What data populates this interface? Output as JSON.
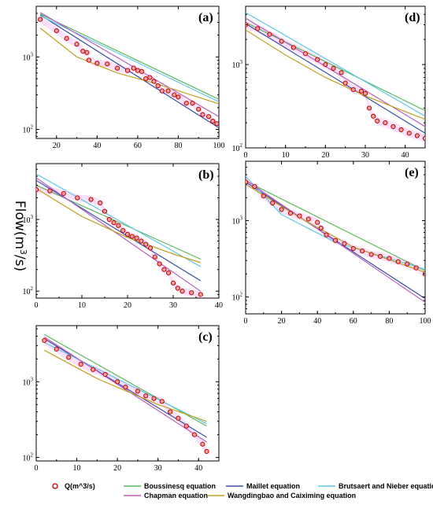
{
  "figure": {
    "ylabel_main": "Flow(m",
    "ylabel_sup": "3",
    "ylabel_tail": "/s)"
  },
  "legend": {
    "items": [
      {
        "label": "Q(m^3/s)",
        "kind": "marker",
        "color": "#c00000"
      },
      {
        "label": "Boussinesq equation",
        "kind": "line",
        "color": "#5cb85c"
      },
      {
        "label": "Maillet equation",
        "kind": "line",
        "color": "#3b4fa8"
      },
      {
        "label": "Brutsaert and Nieber equation",
        "kind": "line",
        "color": "#5fc8e8"
      },
      {
        "label": "Chapman equation",
        "kind": "line",
        "color": "#b85fc0"
      },
      {
        "label": "Wangdingbao and Caiximing equation",
        "kind": "line",
        "color": "#c0a020"
      }
    ]
  },
  "colors": {
    "observed": "#c00000",
    "observed_fill": "#f4a0a0",
    "band": "#ee82ee"
  },
  "chart_data": [
    {
      "panel": "(a)",
      "type": "line",
      "y_scale": "log",
      "xlim": [
        10,
        100
      ],
      "ylim": [
        75,
        5000
      ],
      "xticks": [
        20,
        40,
        60,
        80,
        100
      ],
      "yticks": [
        {
          "v": 100,
          "b": "10",
          "e": "2"
        },
        {
          "v": 1000,
          "b": "10",
          "e": "3"
        }
      ],
      "observed": {
        "x": [
          12,
          20,
          25,
          30,
          33,
          35,
          36,
          40,
          45,
          50,
          55,
          58,
          60,
          62,
          64,
          66,
          68,
          70,
          72,
          75,
          78,
          80,
          84,
          87,
          90,
          92,
          95,
          97,
          99
        ],
        "y": [
          3300,
          2300,
          1800,
          1500,
          1200,
          1150,
          900,
          820,
          800,
          700,
          650,
          700,
          650,
          630,
          500,
          520,
          460,
          400,
          340,
          340,
          300,
          280,
          230,
          230,
          190,
          160,
          150,
          130,
          120
        ]
      },
      "series": [
        {
          "name": "Boussinesq equation",
          "x": [
            12,
            100
          ],
          "y": [
            3900,
            260
          ]
        },
        {
          "name": "Maillet equation",
          "x": [
            12,
            100
          ],
          "y": [
            3800,
            105
          ]
        },
        {
          "name": "Brutsaert and Nieber equation",
          "x": [
            12,
            100
          ],
          "y": [
            3700,
            240
          ]
        },
        {
          "name": "Chapman equation",
          "x": [
            12,
            100
          ],
          "y": [
            4100,
            150
          ]
        },
        {
          "name": "Wangdingbao and Caiximing equation",
          "x": [
            12,
            30,
            50,
            70,
            100
          ],
          "y": [
            2500,
            1000,
            600,
            420,
            225
          ]
        }
      ]
    },
    {
      "panel": "(d)",
      "type": "line",
      "y_scale": "log",
      "xlim": [
        0,
        45
      ],
      "ylim": [
        100,
        5000
      ],
      "xticks": [
        0,
        10,
        20,
        30,
        40
      ],
      "yticks": [
        {
          "v": 100,
          "b": "10",
          "e": "2"
        },
        {
          "v": 1000,
          "b": "10",
          "e": "3"
        }
      ],
      "observed": {
        "x": [
          0,
          3,
          6,
          9,
          12,
          15,
          18,
          20,
          22,
          24,
          25,
          27,
          29,
          30,
          31,
          32,
          33,
          35,
          37,
          39,
          41,
          43,
          45
        ],
        "y": [
          3000,
          2700,
          2300,
          1900,
          1600,
          1350,
          1150,
          1000,
          900,
          800,
          600,
          500,
          480,
          450,
          300,
          240,
          210,
          200,
          180,
          165,
          150,
          140,
          130
        ]
      },
      "series": [
        {
          "name": "Boussinesq equation",
          "x": [
            0,
            45
          ],
          "y": [
            3200,
            280
          ]
        },
        {
          "name": "Maillet equation",
          "x": [
            0,
            45
          ],
          "y": [
            3100,
            150
          ]
        },
        {
          "name": "Brutsaert and Nieber equation",
          "x": [
            0,
            45
          ],
          "y": [
            4200,
            240
          ]
        },
        {
          "name": "Chapman equation",
          "x": [
            0,
            45
          ],
          "y": [
            3600,
            180
          ]
        },
        {
          "name": "Wangdingbao and Caiximing equation",
          "x": [
            0,
            10,
            20,
            30,
            45
          ],
          "y": [
            2600,
            1300,
            700,
            420,
            220
          ]
        }
      ]
    },
    {
      "panel": "(b)",
      "type": "line",
      "y_scale": "log",
      "xlim": [
        0,
        40
      ],
      "ylim": [
        80,
        6000
      ],
      "xticks": [
        0,
        10,
        20,
        30,
        40
      ],
      "yticks": [
        {
          "v": 100,
          "b": "10",
          "e": "2"
        },
        {
          "v": 1000,
          "b": "10",
          "e": "3"
        }
      ],
      "observed": {
        "x": [
          0,
          3,
          6,
          9,
          12,
          14,
          15,
          16,
          17,
          18,
          19,
          20,
          21,
          22,
          23,
          24,
          25,
          26,
          27,
          28,
          29,
          30,
          31,
          32,
          34,
          36
        ],
        "y": [
          2600,
          2500,
          2300,
          2000,
          1900,
          1700,
          1300,
          1000,
          900,
          820,
          700,
          620,
          580,
          550,
          500,
          450,
          400,
          300,
          240,
          200,
          180,
          130,
          110,
          100,
          95,
          90
        ]
      },
      "series": [
        {
          "name": "Boussinesq equation",
          "x": [
            0,
            36
          ],
          "y": [
            3000,
            280
          ]
        },
        {
          "name": "Maillet equation",
          "x": [
            0,
            36
          ],
          "y": [
            3500,
            140
          ]
        },
        {
          "name": "Brutsaert and Nieber equation",
          "x": [
            0,
            36
          ],
          "y": [
            4300,
            220
          ]
        },
        {
          "name": "Chapman equation",
          "x": [
            0,
            36
          ],
          "y": [
            3800,
            100
          ]
        },
        {
          "name": "Wangdingbao and Caiximing equation",
          "x": [
            0,
            10,
            20,
            30,
            36
          ],
          "y": [
            2700,
            1100,
            560,
            330,
            250
          ]
        }
      ]
    },
    {
      "panel": "(e)",
      "type": "line",
      "y_scale": "log",
      "xlim": [
        0,
        100
      ],
      "ylim": [
        60,
        6000
      ],
      "xticks": [
        0,
        20,
        40,
        60,
        80,
        100
      ],
      "yticks": [
        {
          "v": 100,
          "b": "10",
          "e": "2"
        },
        {
          "v": 1000,
          "b": "10",
          "e": "3"
        }
      ],
      "observed": {
        "x": [
          0,
          5,
          10,
          15,
          20,
          25,
          30,
          35,
          40,
          42,
          45,
          50,
          55,
          60,
          65,
          70,
          75,
          80,
          85,
          90,
          95,
          100
        ],
        "y": [
          3200,
          2800,
          2100,
          1700,
          1400,
          1250,
          1150,
          1050,
          950,
          800,
          650,
          550,
          500,
          430,
          400,
          360,
          340,
          320,
          290,
          270,
          240,
          200
        ]
      },
      "series": [
        {
          "name": "Boussinesq equation",
          "x": [
            0,
            100
          ],
          "y": [
            3300,
            220
          ]
        },
        {
          "name": "Maillet equation",
          "x": [
            0,
            100
          ],
          "y": [
            3200,
            95
          ]
        },
        {
          "name": "Brutsaert and Nieber equation",
          "x": [
            0,
            20,
            50,
            100
          ],
          "y": [
            3800,
            1200,
            520,
            230
          ]
        },
        {
          "name": "Chapman equation",
          "x": [
            0,
            100
          ],
          "y": [
            3400,
            85
          ]
        },
        {
          "name": "Wangdingbao and Caiximing equation",
          "x": [
            0,
            30,
            60,
            100
          ],
          "y": [
            3000,
            1100,
            450,
            210
          ]
        }
      ]
    },
    {
      "panel": "(c)",
      "type": "line",
      "y_scale": "log",
      "xlim": [
        0,
        45
      ],
      "ylim": [
        90,
        5500
      ],
      "xticks": [
        0,
        10,
        20,
        30,
        40
      ],
      "yticks": [
        {
          "v": 100,
          "b": "10",
          "e": "2"
        },
        {
          "v": 1000,
          "b": "10",
          "e": "3"
        }
      ],
      "observed": {
        "x": [
          2,
          5,
          8,
          11,
          14,
          17,
          20,
          22,
          25,
          27,
          29,
          31,
          33,
          35,
          37,
          39,
          41,
          42
        ],
        "y": [
          3500,
          2700,
          2100,
          1700,
          1450,
          1250,
          1000,
          850,
          750,
          650,
          600,
          550,
          400,
          330,
          260,
          200,
          150,
          120
        ]
      },
      "series": [
        {
          "name": "Boussinesq equation",
          "x": [
            2,
            42
          ],
          "y": [
            4200,
            260
          ]
        },
        {
          "name": "Maillet equation",
          "x": [
            2,
            42
          ],
          "y": [
            3700,
            185
          ]
        },
        {
          "name": "Brutsaert and Nieber equation",
          "x": [
            2,
            42
          ],
          "y": [
            3300,
            280
          ]
        },
        {
          "name": "Chapman equation",
          "x": [
            2,
            42
          ],
          "y": [
            3900,
            160
          ]
        },
        {
          "name": "Wangdingbao and Caiximing equation",
          "x": [
            2,
            15,
            30,
            42
          ],
          "y": [
            2600,
            1100,
            500,
            300
          ]
        }
      ]
    }
  ]
}
